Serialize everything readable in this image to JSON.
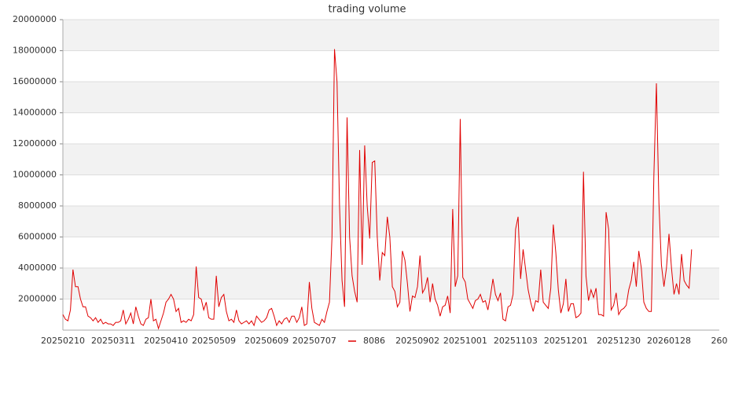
{
  "chart_data": {
    "type": "line",
    "title": "trading volume",
    "categories": [
      "20250210",
      null,
      null,
      null,
      null,
      null,
      null,
      null,
      null,
      null,
      null,
      null,
      null,
      null,
      null,
      null,
      null,
      null,
      null,
      null,
      "20250311",
      null,
      null,
      null,
      null,
      null,
      null,
      null,
      null,
      null,
      null,
      null,
      null,
      null,
      null,
      null,
      null,
      null,
      null,
      null,
      null,
      "20250410",
      null,
      null,
      null,
      null,
      null,
      null,
      null,
      null,
      null,
      null,
      null,
      null,
      null,
      null,
      null,
      null,
      null,
      null,
      "20250509",
      null,
      null,
      null,
      null,
      null,
      null,
      null,
      null,
      null,
      null,
      null,
      null,
      null,
      null,
      null,
      null,
      null,
      null,
      null,
      null,
      "20250609",
      null,
      null,
      null,
      null,
      null,
      null,
      null,
      null,
      null,
      null,
      null,
      null,
      null,
      null,
      null,
      null,
      null,
      null,
      "20250707",
      null,
      null,
      null,
      null,
      null,
      null,
      null,
      null,
      null,
      null,
      null,
      null,
      null,
      null,
      null,
      null,
      null,
      null,
      null,
      null,
      null,
      null,
      null,
      null,
      null,
      null,
      null,
      null,
      null,
      null,
      null,
      null,
      null,
      null,
      null,
      null,
      null,
      null,
      null,
      null,
      "20250902",
      null,
      null,
      null,
      null,
      null,
      null,
      null,
      null,
      null,
      null,
      null,
      null,
      null,
      null,
      null,
      null,
      null,
      null,
      "20251001",
      null,
      null,
      null,
      null,
      null,
      null,
      null,
      null,
      null,
      null,
      null,
      null,
      null,
      null,
      null,
      null,
      null,
      null,
      null,
      "20251103",
      null,
      null,
      null,
      null,
      null,
      null,
      null,
      null,
      null,
      null,
      null,
      null,
      null,
      null,
      null,
      null,
      null,
      null,
      null,
      "20251201",
      null,
      null,
      null,
      null,
      null,
      null,
      null,
      null,
      null,
      null,
      null,
      null,
      null,
      null,
      null,
      null,
      null,
      null,
      null,
      null,
      "20251230",
      null,
      null,
      null,
      null,
      null,
      null,
      null,
      null,
      null,
      null,
      null,
      null,
      null,
      null,
      null,
      null,
      null,
      null,
      null,
      "20260128",
      null,
      null,
      null,
      null,
      null,
      null,
      null,
      null,
      null,
      null,
      null,
      null,
      null,
      null,
      null,
      null,
      null,
      null,
      null,
      "260"
    ],
    "series": [
      {
        "name": "8086",
        "color": "#e00000",
        "values": [
          1000000,
          700000,
          600000,
          1300000,
          3900000,
          2800000,
          2800000,
          2000000,
          1500000,
          1500000,
          900000,
          800000,
          600000,
          800000,
          500000,
          700000,
          400000,
          500000,
          400000,
          400000,
          300000,
          500000,
          500000,
          600000,
          1300000,
          400000,
          700000,
          1100000,
          400000,
          1500000,
          900000,
          400000,
          300000,
          700000,
          800000,
          2000000,
          600000,
          700000,
          100000,
          600000,
          1100000,
          1800000,
          2000000,
          2300000,
          2000000,
          1200000,
          1400000,
          500000,
          600000,
          500000,
          700000,
          600000,
          1000000,
          4100000,
          2100000,
          2000000,
          1300000,
          1800000,
          800000,
          700000,
          700000,
          3500000,
          1500000,
          2100000,
          2300000,
          1200000,
          600000,
          700000,
          500000,
          1300000,
          600000,
          400000,
          500000,
          600000,
          400000,
          600000,
          300000,
          900000,
          700000,
          500000,
          600000,
          800000,
          1300000,
          1400000,
          900000,
          300000,
          600000,
          400000,
          700000,
          800000,
          500000,
          900000,
          900000,
          500000,
          800000,
          1500000,
          300000,
          400000,
          3100000,
          1400000,
          500000,
          400000,
          300000,
          700000,
          500000,
          1200000,
          1800000,
          6000000,
          18100000,
          16000000,
          8000000,
          3200000,
          1500000,
          13700000,
          6000000,
          3500000,
          2500000,
          1800000,
          11600000,
          4200000,
          11900000,
          8000000,
          5900000,
          10800000,
          10900000,
          6000000,
          3200000,
          5000000,
          4800000,
          7300000,
          6000000,
          2800000,
          2500000,
          1500000,
          1800000,
          5100000,
          4500000,
          3000000,
          1200000,
          2200000,
          2100000,
          2800000,
          4800000,
          2400000,
          2700000,
          3400000,
          1800000,
          3000000,
          2000000,
          1600000,
          900000,
          1500000,
          1600000,
          2200000,
          1100000,
          7800000,
          2800000,
          3500000,
          13600000,
          3400000,
          3100000,
          2000000,
          1700000,
          1400000,
          1900000,
          2000000,
          2300000,
          1800000,
          1900000,
          1300000,
          2200000,
          3300000,
          2300000,
          1900000,
          2400000,
          700000,
          600000,
          1500000,
          1600000,
          2300000,
          6500000,
          7300000,
          3300000,
          5200000,
          3900000,
          2600000,
          1800000,
          1200000,
          1900000,
          1800000,
          3900000,
          1800000,
          1600000,
          1400000,
          2700000,
          6800000,
          5000000,
          2600000,
          1100000,
          1700000,
          3300000,
          1200000,
          1700000,
          1700000,
          800000,
          900000,
          1100000,
          10200000,
          3500000,
          1900000,
          2600000,
          2100000,
          2700000,
          1000000,
          1000000,
          900000,
          7600000,
          6500000,
          1300000,
          1600000,
          2400000,
          1000000,
          1300000,
          1400000,
          1600000,
          2600000,
          3200000,
          4400000,
          2800000,
          5100000,
          4000000,
          1800000,
          1400000,
          1200000,
          1200000,
          10000000,
          15900000,
          8200000,
          4200000,
          2800000,
          4000000,
          6200000,
          4000000,
          2300000,
          3000000,
          2300000,
          4900000,
          3200000,
          2900000,
          2700000,
          5200000,
          null,
          null,
          null,
          null,
          null,
          null,
          null,
          null,
          null,
          null,
          null
        ]
      }
    ],
    "ylim": [
      0,
      20000000
    ],
    "yticks": [
      2000000,
      4000000,
      6000000,
      8000000,
      10000000,
      12000000,
      14000000,
      16000000,
      18000000,
      20000000
    ],
    "grid": true,
    "legend": "bottom"
  }
}
